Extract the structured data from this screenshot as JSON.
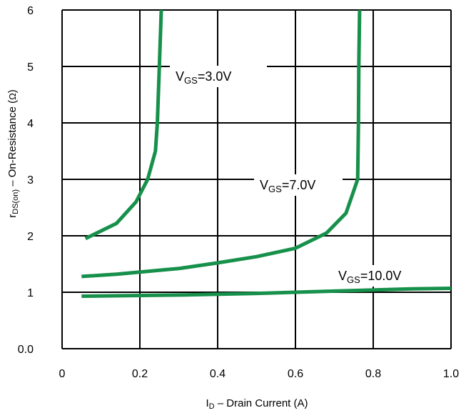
{
  "chart_data": {
    "type": "line",
    "xlabel": {
      "main": "I",
      "sub": "D",
      "rest": " – Drain Current (A)"
    },
    "ylabel": {
      "main": "r",
      "sub": "DS(on)",
      "rest": " – On-Resistance   (",
      "unit": "Ω",
      "close": ")"
    },
    "xlim": [
      0,
      1.0
    ],
    "ylim": [
      0,
      6
    ],
    "x_ticks": [
      {
        "v": 0,
        "label": "0"
      },
      {
        "v": 0.2,
        "label": "0.2"
      },
      {
        "v": 0.4,
        "label": "0.4"
      },
      {
        "v": 0.6,
        "label": "0.6"
      },
      {
        "v": 0.8,
        "label": "0.8"
      },
      {
        "v": 1.0,
        "label": "1.0"
      }
    ],
    "y_ticks": [
      {
        "v": 0,
        "label": "0.0"
      },
      {
        "v": 1,
        "label": "1"
      },
      {
        "v": 2,
        "label": "2"
      },
      {
        "v": 3,
        "label": "3"
      },
      {
        "v": 4,
        "label": "4"
      },
      {
        "v": 5,
        "label": "5"
      },
      {
        "v": 6,
        "label": "6"
      }
    ],
    "grid": true,
    "line_color": "#16904a",
    "series": [
      {
        "name": "VGS=3.0V",
        "label_main": "V",
        "label_sub": "GS",
        "label_rest": "=3.0V",
        "points": [
          [
            0.06,
            1.95
          ],
          [
            0.14,
            2.22
          ],
          [
            0.19,
            2.6
          ],
          [
            0.22,
            3.0
          ],
          [
            0.24,
            3.5
          ],
          [
            0.245,
            4.0
          ],
          [
            0.25,
            5.0
          ],
          [
            0.255,
            6.0
          ]
        ]
      },
      {
        "name": "VGS=7.0V",
        "label_main": "V",
        "label_sub": "GS",
        "label_rest": "=7.0V",
        "points": [
          [
            0.05,
            1.28
          ],
          [
            0.14,
            1.32
          ],
          [
            0.3,
            1.42
          ],
          [
            0.4,
            1.52
          ],
          [
            0.5,
            1.63
          ],
          [
            0.6,
            1.78
          ],
          [
            0.68,
            2.05
          ],
          [
            0.73,
            2.4
          ],
          [
            0.76,
            3.0
          ],
          [
            0.762,
            4.0
          ],
          [
            0.763,
            5.0
          ],
          [
            0.765,
            6.0
          ]
        ]
      },
      {
        "name": "VGS=10.0V",
        "label_main": "V",
        "label_sub": "GS",
        "label_rest": "=10.0V",
        "points": [
          [
            0.05,
            0.93
          ],
          [
            0.3,
            0.95
          ],
          [
            0.5,
            0.98
          ],
          [
            0.7,
            1.02
          ],
          [
            0.9,
            1.06
          ],
          [
            1.0,
            1.07
          ]
        ]
      }
    ]
  }
}
